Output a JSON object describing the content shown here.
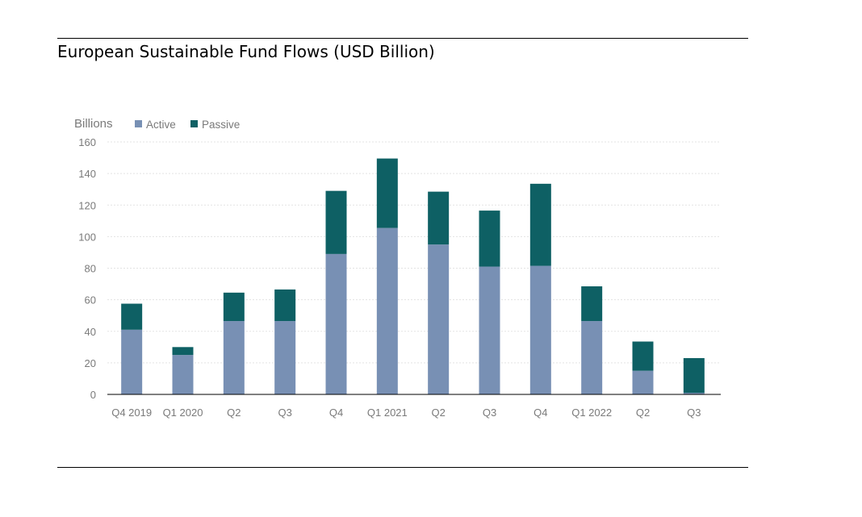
{
  "title": "European Sustainable Fund Flows (USD Billion)",
  "chart_data": {
    "type": "bar",
    "stacked": true,
    "title": "European Sustainable Fund Flows (USD Billion)",
    "unit_label": "Billions",
    "xlabel": "",
    "ylabel": "",
    "categories": [
      "Q4 2019",
      "Q1 2020",
      "Q2",
      "Q3",
      "Q4",
      "Q1 2021",
      "Q2",
      "Q3",
      "Q4",
      "Q1 2022",
      "Q2",
      "Q3"
    ],
    "series": [
      {
        "name": "Active",
        "color": "#7890b4",
        "values": [
          41,
          25,
          46.5,
          46.5,
          89,
          105.5,
          95,
          81,
          81.5,
          46.5,
          15,
          1
        ]
      },
      {
        "name": "Passive",
        "color": "#0e6064",
        "values": [
          16.5,
          5,
          18,
          20,
          40,
          44,
          33.5,
          35.5,
          52,
          22,
          18.5,
          22
        ]
      }
    ],
    "yticks": [
      0,
      20,
      40,
      60,
      80,
      100,
      120,
      140,
      160
    ],
    "ylim": [
      0,
      160
    ],
    "grid": true,
    "legend": "top-left"
  }
}
